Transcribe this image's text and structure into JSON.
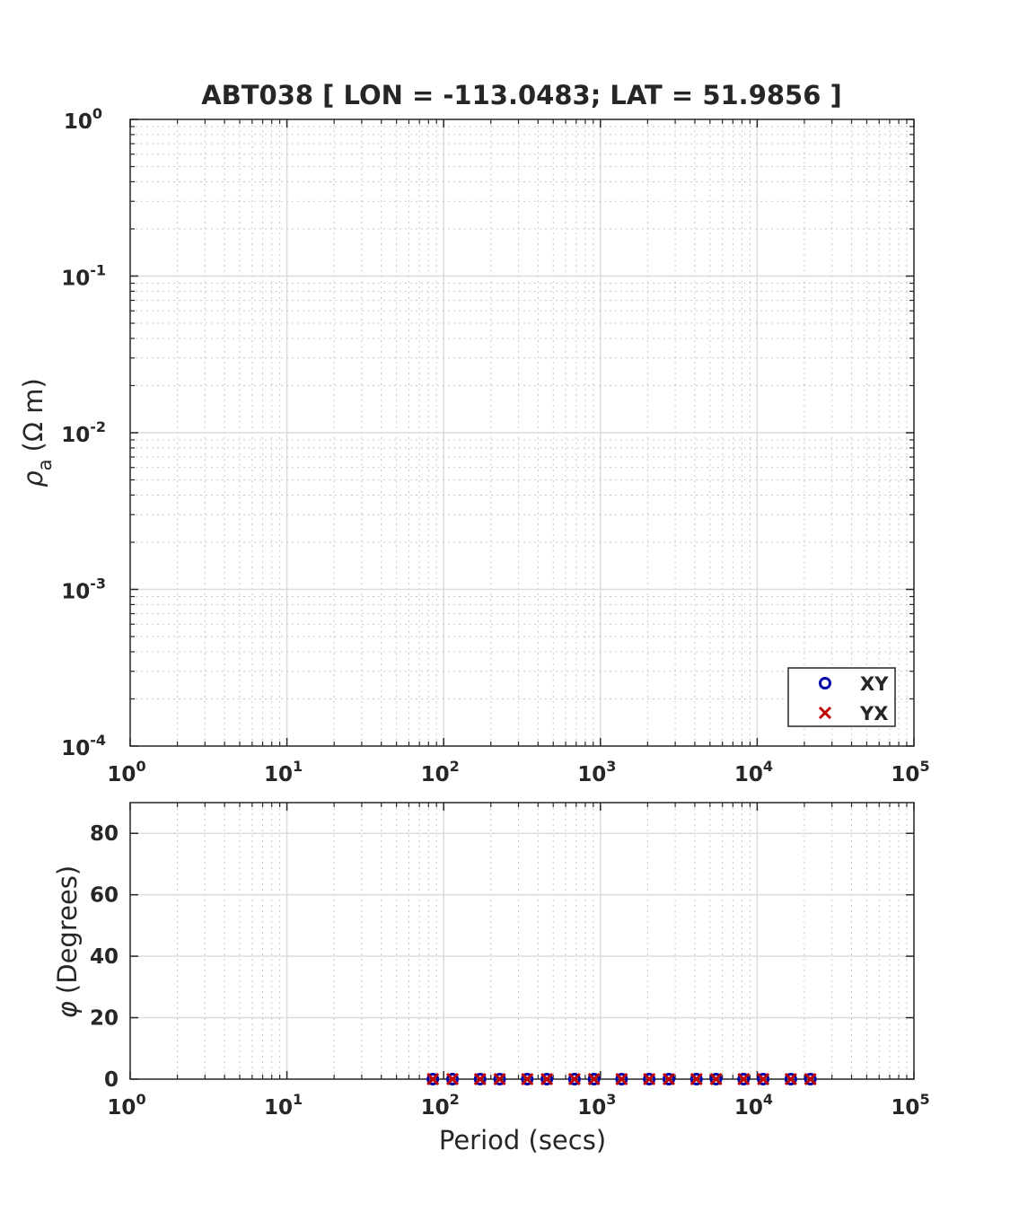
{
  "chart_data": [
    {
      "type": "scatter",
      "title": "ABT038 [ LON = -113.0483; LAT = 51.9856 ]",
      "xlabel": "",
      "ylabel_symbol": "ρ",
      "ylabel_sub": "a",
      "ylabel_unit": "(Ω m)",
      "xscale": "log",
      "yscale": "log",
      "xlim": [
        1,
        100000
      ],
      "ylim": [
        0.0001,
        1
      ],
      "x_ticks": [
        {
          "base": "10",
          "exp": "0"
        },
        {
          "base": "10",
          "exp": "1"
        },
        {
          "base": "10",
          "exp": "2"
        },
        {
          "base": "10",
          "exp": "3"
        },
        {
          "base": "10",
          "exp": "4"
        },
        {
          "base": "10",
          "exp": "5"
        }
      ],
      "y_ticks": [
        {
          "base": "10",
          "exp": "0"
        },
        {
          "base": "10",
          "exp": "-1"
        },
        {
          "base": "10",
          "exp": "-2"
        },
        {
          "base": "10",
          "exp": "-3"
        },
        {
          "base": "10",
          "exp": "-4"
        }
      ],
      "grid": true,
      "minor_grid": true,
      "legend_position": "bottom-right",
      "legend": [
        {
          "label": "XY",
          "marker": "circle",
          "color": "#0000aa"
        },
        {
          "label": "YX",
          "marker": "x",
          "color": "#c00000"
        }
      ],
      "series": []
    },
    {
      "type": "scatter",
      "xlabel": "Period (secs)",
      "ylabel_symbol": "φ",
      "ylabel_text": "(Degrees)",
      "xscale": "log",
      "xlim": [
        1,
        100000
      ],
      "ylim": [
        0,
        90
      ],
      "x_ticks": [
        {
          "base": "10",
          "exp": "0"
        },
        {
          "base": "10",
          "exp": "1"
        },
        {
          "base": "10",
          "exp": "2"
        },
        {
          "base": "10",
          "exp": "3"
        },
        {
          "base": "10",
          "exp": "4"
        },
        {
          "base": "10",
          "exp": "5"
        }
      ],
      "y_ticks": [
        "0",
        "20",
        "40",
        "60",
        "80"
      ],
      "grid": true,
      "minor_grid": true,
      "series": [
        {
          "name": "XY",
          "marker": "circle",
          "color": "#0000aa",
          "x": [
            85.3,
            113.8,
            170.7,
            227.6,
            341.3,
            455.1,
            682.7,
            910.2,
            1365.3,
            2048,
            2730.7,
            4096,
            5461.3,
            8192,
            10922.7,
            16384,
            21845.3
          ],
          "y": [
            0,
            0,
            0,
            0,
            0,
            0,
            0,
            0,
            0,
            0,
            0,
            0,
            0,
            0,
            0,
            0,
            0
          ]
        },
        {
          "name": "YX",
          "marker": "x",
          "color": "#c00000",
          "x": [
            85.3,
            113.8,
            170.7,
            227.6,
            341.3,
            455.1,
            682.7,
            910.2,
            1365.3,
            2048,
            2730.7,
            4096,
            5461.3,
            8192,
            10922.7,
            16384,
            21845.3
          ],
          "y": [
            0,
            0,
            0,
            0,
            0,
            0,
            0,
            0,
            0,
            0,
            0,
            0,
            0,
            0,
            0,
            0,
            0
          ]
        }
      ]
    }
  ]
}
